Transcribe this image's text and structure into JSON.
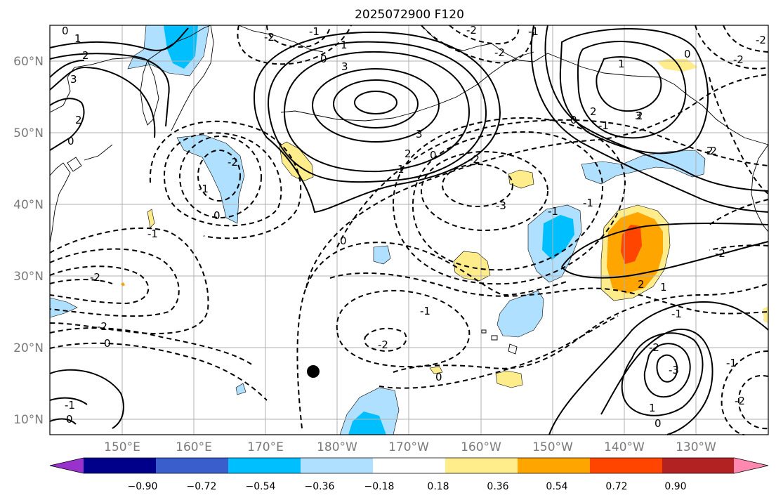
{
  "title": "2025072900 F120",
  "lon_labels": [
    "150°E",
    "160°E",
    "170°E",
    "180°W",
    "170°W",
    "160°W",
    "150°W",
    "140°W",
    "130°W"
  ],
  "lat_labels": [
    "60°N",
    "50°N",
    "40°N",
    "30°N",
    "20°N",
    "10°N"
  ],
  "colorbar": {
    "labels": [
      "−0.90",
      "−0.72",
      "−0.54",
      "−0.36",
      "−0.18",
      "0.18",
      "0.36",
      "0.54",
      "0.72",
      "0.90"
    ],
    "colors": [
      "#9932cc",
      "#00008b",
      "#3a5fcd",
      "#00bfff",
      "#b0e0ff",
      "#ffffff",
      "#ffec8b",
      "#ffa500",
      "#ff4500",
      "#b22222",
      "#ff88b0"
    ]
  },
  "contour_labels": [
    "0",
    "1",
    "2",
    "3",
    "2",
    "0",
    "1",
    "0",
    "-1",
    "-2",
    "3",
    "0",
    "1",
    "2",
    "3",
    "0",
    "-2",
    "-2",
    "-1",
    "0",
    "1",
    "-2",
    "-3",
    "-2",
    "-1",
    "0",
    "2",
    "2",
    "-1",
    "-2",
    "-1",
    "0",
    "-2",
    "-1",
    "-2",
    "-1",
    "-2",
    "1",
    "0",
    "-1",
    "-2",
    "2",
    "-2",
    "0",
    "-1",
    "-3",
    "-2",
    "1",
    "0",
    "-1",
    "-2",
    "-2",
    "-1",
    "0",
    "3",
    "2"
  ],
  "marker": "filled-circle"
}
